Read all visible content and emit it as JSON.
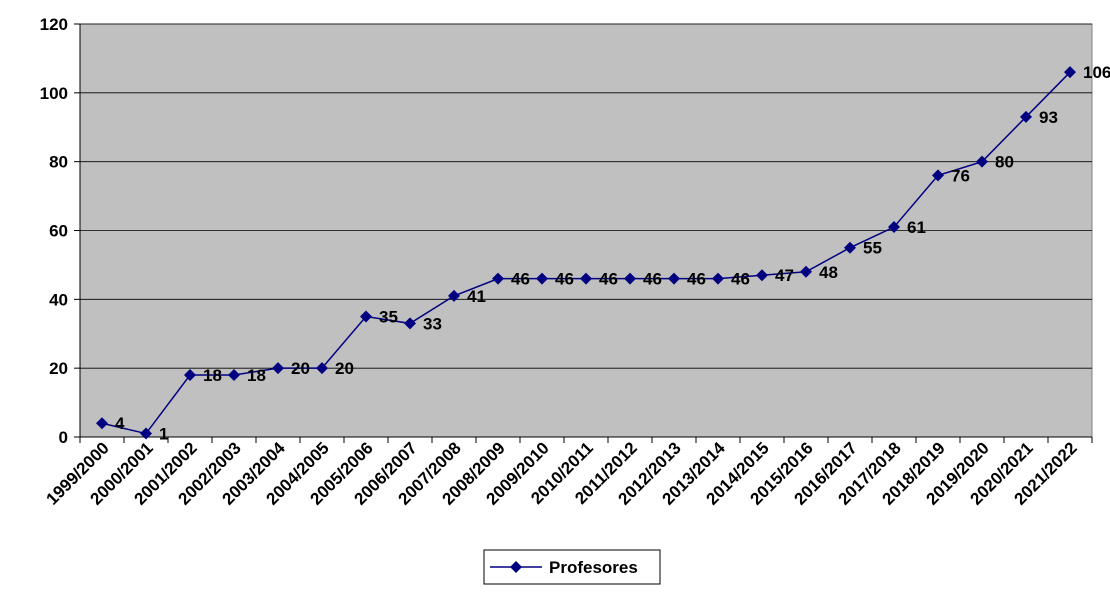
{
  "chart_data": {
    "type": "line",
    "title": "",
    "xlabel": "",
    "ylabel": "",
    "ylim": [
      0,
      120
    ],
    "yticks": [
      0,
      20,
      40,
      60,
      80,
      100,
      120
    ],
    "grid": true,
    "legend_position": "bottom",
    "colors": {
      "plot_bg": "#c0c0c0",
      "series": "#000080",
      "gridline": "#000000"
    },
    "categories": [
      "1999/2000",
      "2000/2001",
      "2001/2002",
      "2002/2003",
      "2003/2004",
      "2004/2005",
      "2005/2006",
      "2006/2007",
      "2007/2008",
      "2008/2009",
      "2009/2010",
      "2010/2011",
      "2011/2012",
      "2012/2013",
      "2013/2014",
      "2014/2015",
      "2015/2016",
      "2016/2017",
      "2017/2018",
      "2018/2019",
      "2019/2020",
      "2020/2021",
      "2021/2022"
    ],
    "series": [
      {
        "name": "Profesores",
        "marker": "diamond",
        "values": [
          4,
          1,
          18,
          18,
          20,
          20,
          35,
          33,
          41,
          46,
          46,
          46,
          46,
          46,
          46,
          47,
          48,
          55,
          61,
          76,
          80,
          93,
          106
        ]
      }
    ]
  }
}
